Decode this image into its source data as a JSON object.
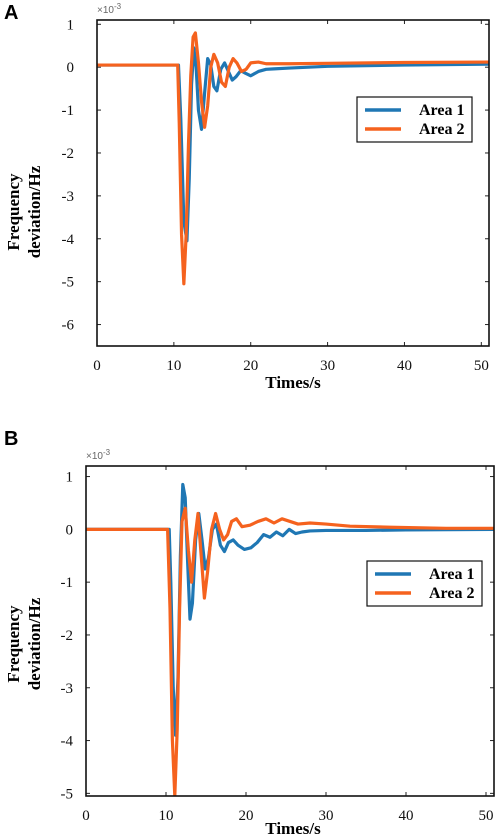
{
  "chart_data": [
    {
      "type": "line",
      "panel": "A",
      "xlabel": "Times/s",
      "ylabel_lines": [
        "Frequency",
        "deviation/Hz"
      ],
      "y_exponent_base": "×10",
      "y_exponent_power": "-3",
      "xlim": [
        0,
        51
      ],
      "ylim": [
        -6.5,
        1.1
      ],
      "xticks": [
        0,
        10,
        20,
        30,
        40,
        50
      ],
      "yticks": [
        1,
        0,
        -1,
        -2,
        -3,
        -4,
        -5,
        -6
      ],
      "legend_position": "top-right",
      "series": [
        {
          "name": "Area 1",
          "color": "#1f77b4",
          "x": [
            0,
            10.6,
            10.9,
            11.3,
            11.7,
            12.0,
            12.3,
            12.6,
            12.9,
            13.2,
            13.6,
            14.0,
            14.4,
            14.8,
            15.2,
            15.6,
            16.1,
            16.6,
            17.1,
            17.6,
            18.1,
            18.7,
            19.3,
            20.0,
            21.0,
            22.0,
            23.0,
            25.0,
            30.0,
            40.0,
            51.0
          ],
          "y": [
            0.05,
            0.05,
            -1.2,
            -3.6,
            -4.05,
            -2.6,
            -0.4,
            0.45,
            0.0,
            -1.0,
            -1.45,
            -0.6,
            0.2,
            0.05,
            -0.45,
            -0.55,
            -0.05,
            0.1,
            -0.1,
            -0.3,
            -0.22,
            -0.08,
            -0.14,
            -0.2,
            -0.1,
            -0.05,
            -0.04,
            -0.02,
            0.02,
            0.05,
            0.07
          ]
        },
        {
          "name": "Area 2",
          "color": "#f5621e",
          "x": [
            0,
            10.5,
            10.7,
            11.0,
            11.3,
            11.6,
            11.9,
            12.2,
            12.5,
            12.8,
            13.2,
            13.6,
            14.0,
            14.4,
            14.8,
            15.2,
            15.7,
            16.2,
            16.7,
            17.2,
            17.7,
            18.2,
            18.8,
            19.4,
            20.0,
            21.0,
            22.0,
            25.0,
            30.0,
            40.0,
            51.0
          ],
          "y": [
            0.05,
            0.05,
            -1.3,
            -3.9,
            -5.05,
            -3.9,
            -1.8,
            -0.2,
            0.7,
            0.8,
            0.1,
            -0.8,
            -1.4,
            -0.9,
            0.0,
            0.3,
            0.1,
            -0.35,
            -0.45,
            0.0,
            0.2,
            0.1,
            -0.1,
            -0.05,
            0.1,
            0.12,
            0.08,
            0.08,
            0.09,
            0.11,
            0.12
          ]
        }
      ]
    },
    {
      "type": "line",
      "panel": "B",
      "xlabel": "Times/s",
      "ylabel_lines": [
        "Frequency",
        "deviation/Hz"
      ],
      "y_exponent_base": "×10",
      "y_exponent_power": "-3",
      "xlim": [
        0,
        51
      ],
      "ylim": [
        -5.05,
        1.2
      ],
      "xticks": [
        0,
        10,
        20,
        30,
        40,
        50
      ],
      "yticks": [
        1,
        0,
        -1,
        -2,
        -3,
        -4,
        -5
      ],
      "legend_position": "right",
      "series": [
        {
          "name": "Area 1",
          "color": "#1f77b4",
          "x": [
            0,
            10.4,
            10.6,
            10.9,
            11.2,
            11.5,
            11.8,
            12.1,
            12.4,
            12.7,
            13.0,
            13.3,
            13.7,
            14.1,
            14.5,
            14.9,
            15.3,
            15.8,
            16.3,
            16.8,
            17.3,
            17.8,
            18.4,
            19.0,
            19.8,
            20.6,
            21.4,
            22.2,
            23.0,
            23.8,
            24.6,
            25.4,
            26.2,
            27.0,
            28.0,
            30.0,
            35.0,
            40.0,
            51.0
          ],
          "y": [
            0,
            0,
            -1.0,
            -3.0,
            -3.9,
            -2.8,
            -0.5,
            0.85,
            0.6,
            -0.6,
            -1.7,
            -1.4,
            -0.2,
            0.3,
            -0.2,
            -0.75,
            -0.55,
            0.0,
            0.1,
            -0.3,
            -0.42,
            -0.25,
            -0.2,
            -0.3,
            -0.38,
            -0.35,
            -0.25,
            -0.1,
            -0.15,
            -0.05,
            -0.12,
            0.0,
            -0.08,
            -0.05,
            -0.03,
            -0.02,
            -0.02,
            -0.01,
            0.0
          ]
        },
        {
          "name": "Area 2",
          "color": "#f5621e",
          "x": [
            0,
            10.2,
            10.5,
            10.8,
            11.1,
            11.4,
            11.7,
            12.0,
            12.4,
            12.8,
            13.2,
            13.6,
            14.0,
            14.4,
            14.8,
            15.2,
            15.7,
            16.2,
            16.7,
            17.2,
            17.7,
            18.2,
            18.8,
            19.5,
            20.5,
            21.5,
            22.5,
            23.5,
            24.5,
            25.5,
            26.5,
            28.0,
            30.0,
            33.0,
            38.0,
            45.0,
            51.0
          ],
          "y": [
            0,
            0,
            -1.5,
            -4.0,
            -5.05,
            -3.8,
            -1.5,
            0.15,
            0.4,
            -0.4,
            -1.0,
            -0.2,
            0.3,
            -0.5,
            -1.3,
            -0.8,
            0.0,
            0.3,
            0.0,
            -0.2,
            -0.1,
            0.15,
            0.2,
            0.05,
            0.08,
            0.15,
            0.2,
            0.12,
            0.2,
            0.15,
            0.1,
            0.12,
            0.1,
            0.06,
            0.04,
            0.02,
            0.02
          ]
        }
      ]
    }
  ]
}
